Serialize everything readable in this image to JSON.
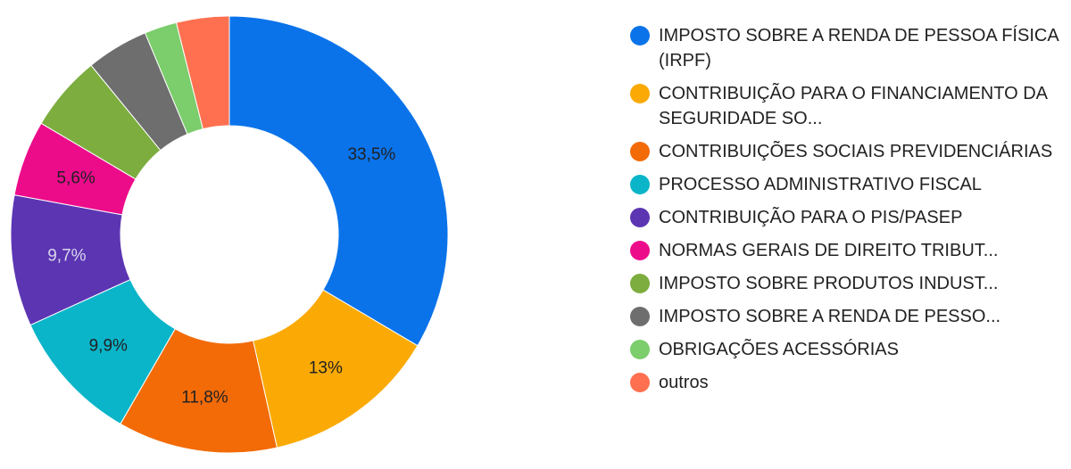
{
  "chart_data": {
    "type": "pie",
    "donut": true,
    "legend_position": "right",
    "slices": [
      {
        "label": "IMPOSTO SOBRE A RENDA DE PESSOA FÍSICA (IRPF)",
        "value": 33.5,
        "display": "33,5%",
        "color": "#0a73ea",
        "text_color": "#202124"
      },
      {
        "label": "CONTRIBUIÇÃO PARA O FINANCIAMENTO DA SEGURIDADE SO...",
        "value": 13.0,
        "display": "13%",
        "color": "#fbaa05",
        "text_color": "#202124"
      },
      {
        "label": "CONTRIBUIÇÕES SOCIAIS PREVIDENCIÁRIAS",
        "value": 11.8,
        "display": "11,8%",
        "color": "#f26b07",
        "text_color": "#202124"
      },
      {
        "label": "PROCESSO ADMINISTRATIVO FISCAL",
        "value": 9.9,
        "display": "9,9%",
        "color": "#0ab5c9",
        "text_color": "#202124"
      },
      {
        "label": "CONTRIBUIÇÃO PARA O PIS/PASEP",
        "value": 9.7,
        "display": "9,7%",
        "color": "#5c35b3",
        "text_color": "#d9d6ec"
      },
      {
        "label": "NORMAS GERAIS DE DIREITO TRIBUT...",
        "value": 5.6,
        "display": "5,6%",
        "color": "#ec0c8a",
        "text_color": "#202124"
      },
      {
        "label": "IMPOSTO SOBRE PRODUTOS INDUST...",
        "value": 5.6,
        "display": "",
        "color": "#7cad3e",
        "text_color": "#202124"
      },
      {
        "label": "IMPOSTO SOBRE A RENDA DE PESSO...",
        "value": 4.6,
        "display": "",
        "color": "#6e6e6e",
        "text_color": "#202124"
      },
      {
        "label": "OBRIGAÇÕES ACESSÓRIAS",
        "value": 2.4,
        "display": "",
        "color": "#7ccd6c",
        "text_color": "#202124"
      },
      {
        "label": "outros",
        "value": 3.9,
        "display": "",
        "color": "#fe7050",
        "text_color": "#202124"
      }
    ]
  }
}
